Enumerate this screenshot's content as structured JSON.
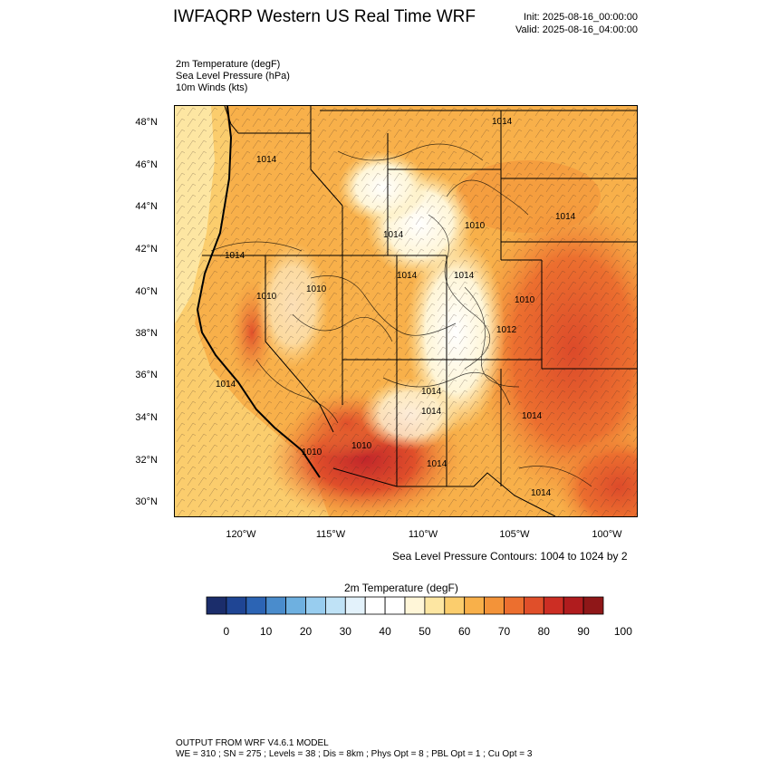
{
  "title": "IWFAQRP Western US Real Time WRF",
  "init": "Init: 2025-08-16_00:00:00",
  "valid": "Valid: 2025-08-16_04:00:00",
  "fields": [
    "2m Temperature   (degF)",
    "Sea Level Pressure   (hPa)",
    "10m Winds   (kts)"
  ],
  "lat_labels": [
    "48°N",
    "46°N",
    "44°N",
    "42°N",
    "40°N",
    "38°N",
    "36°N",
    "34°N",
    "32°N",
    "30°N"
  ],
  "lon_labels": [
    "120°W",
    "115°W",
    "110°W",
    "105°W",
    "100°W"
  ],
  "isobar_labels": [
    "1014",
    "1014",
    "1014",
    "1014",
    "1014",
    "1014",
    "1014",
    "1010",
    "1010",
    "1010",
    "1010",
    "1010",
    "1014",
    "1012",
    "1014",
    "1014",
    "1010",
    "1014",
    "1014",
    "1014"
  ],
  "contour_note": "Sea Level Pressure Contours: 1004 to 1024 by 2",
  "colorbar": {
    "title": "2m Temperature  (degF)",
    "colors": [
      "#1b2d6b",
      "#1f4594",
      "#2c64b4",
      "#4a8ccc",
      "#6eb0e0",
      "#98cdef",
      "#bfe2f6",
      "#e3f2fb",
      "#ffffff",
      "#ffffff",
      "#fff6d8",
      "#fde6a2",
      "#fbcd6d",
      "#f8b04a",
      "#f39339",
      "#ec6f2f",
      "#e04f2a",
      "#cc2e24",
      "#b01c1e",
      "#8f1718"
    ],
    "ticks": [
      "0",
      "10",
      "20",
      "30",
      "40",
      "50",
      "60",
      "70",
      "80",
      "90",
      "100"
    ]
  },
  "footer": [
    "OUTPUT FROM WRF V4.6.1 MODEL",
    "WE = 310 ; SN = 275 ; Levels = 38 ; Dis = 8km ; Phys Opt = 8 ; PBL Opt = 1 ; Cu Opt = 3"
  ]
}
